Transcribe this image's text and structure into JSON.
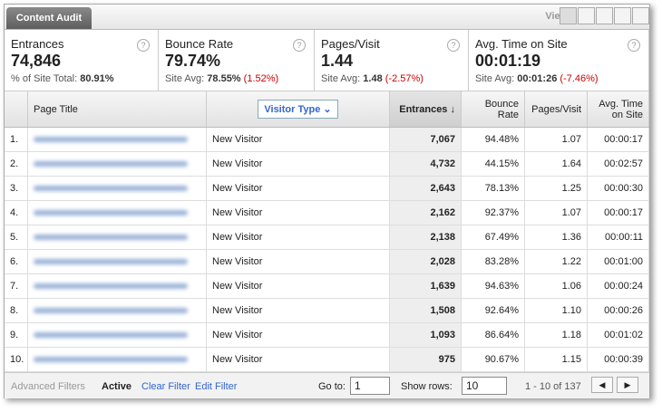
{
  "tab": "Content Audit",
  "views_label": "Views:",
  "summary": [
    {
      "label": "Entrances",
      "value": "74,846",
      "note": "% of Site Total:",
      "note_value": "80.91%"
    },
    {
      "label": "Bounce Rate",
      "value": "79.74%",
      "note": "Site Avg:",
      "note_value": "78.55%",
      "change": "(1.52%)"
    },
    {
      "label": "Pages/Visit",
      "value": "1.44",
      "note": "Site Avg:",
      "note_value": "1.48",
      "change": "(-2.57%)"
    },
    {
      "label": "Avg. Time on Site",
      "value": "00:01:19",
      "note": "Site Avg:",
      "note_value": "00:01:26",
      "change": "(-7.46%)"
    }
  ],
  "table": {
    "headers": [
      "Page Title",
      "Visitor Type",
      "Entrances",
      "Bounce Rate",
      "Pages/Visit",
      "Avg. Time on Site"
    ],
    "rows": [
      [
        "1.",
        "New Visitor",
        "7,067",
        "94.48%",
        "1.07",
        "00:00:17"
      ],
      [
        "2.",
        "New Visitor",
        "4,732",
        "44.15%",
        "1.64",
        "00:02:57"
      ],
      [
        "3.",
        "New Visitor",
        "2,643",
        "78.13%",
        "1.25",
        "00:00:30"
      ],
      [
        "4.",
        "New Visitor",
        "2,162",
        "92.37%",
        "1.07",
        "00:00:17"
      ],
      [
        "5.",
        "New Visitor",
        "2,138",
        "67.49%",
        "1.36",
        "00:00:11"
      ],
      [
        "6.",
        "New Visitor",
        "2,028",
        "83.28%",
        "1.22",
        "00:01:00"
      ],
      [
        "7.",
        "New Visitor",
        "1,639",
        "94.63%",
        "1.06",
        "00:00:24"
      ],
      [
        "8.",
        "New Visitor",
        "1,508",
        "92.64%",
        "1.10",
        "00:00:26"
      ],
      [
        "9.",
        "New Visitor",
        "1,093",
        "86.64%",
        "1.18",
        "00:01:02"
      ],
      [
        "10.",
        "New Visitor",
        "975",
        "90.67%",
        "1.15",
        "00:00:39"
      ]
    ]
  },
  "footer": {
    "advanced": "Advanced Filters",
    "active": "Active",
    "clear": "Clear Filter",
    "edit": "Edit Filter",
    "goto_label": "Go to:",
    "goto_value": "1",
    "rows_label": "Show rows:",
    "rows_value": "10",
    "range": "1 - 10 of 137"
  }
}
